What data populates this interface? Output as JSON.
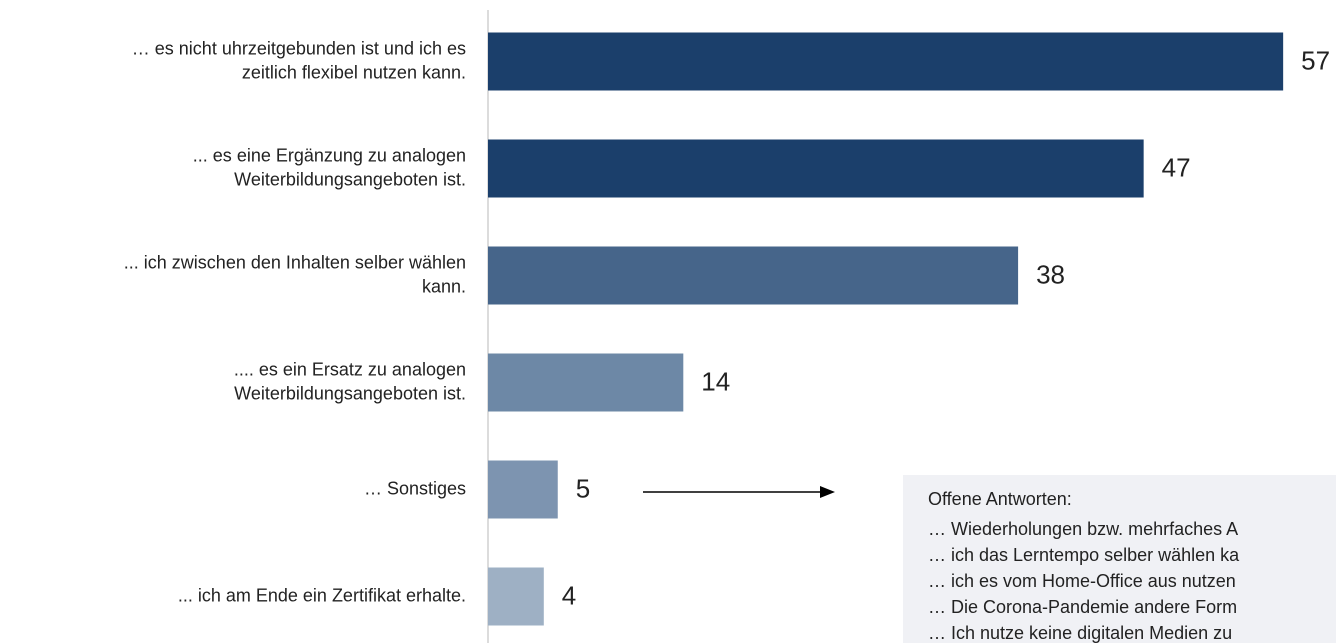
{
  "chart_data": {
    "type": "bar",
    "orientation": "horizontal",
    "categories": [
      [
        "… es nicht uhrzeitgebunden ist und ich es",
        "zeitlich flexibel nutzen kann."
      ],
      [
        "... es eine Ergänzung zu analogen",
        "Weiterbildungsangeboten ist."
      ],
      [
        "... ich zwischen den Inhalten selber wählen",
        "kann."
      ],
      [
        ".... es ein Ersatz zu analogen",
        "Weiterbildungsangeboten ist."
      ],
      [
        "… Sonstiges"
      ],
      [
        "... ich am Ende ein Zertifikat erhalte."
      ]
    ],
    "values": [
      57,
      47,
      38,
      14,
      5,
      4
    ],
    "colors": [
      "#1b3f6b",
      "#1b3f6b",
      "#46658a",
      "#6d88a6",
      "#7d94b0",
      "#9eb0c4"
    ],
    "xlim": [
      0,
      60
    ],
    "annotation": {
      "title": "Offene Antworten:",
      "lines": [
        "… Wiederholungen bzw. mehrfaches A",
        "… ich das Lerntempo selber wählen ka",
        "… ich es vom Home-Office aus nutzen",
        "… Die Corona-Pandemie andere Form",
        "… Ich nutze keine digitalen Medien zu"
      ]
    }
  }
}
